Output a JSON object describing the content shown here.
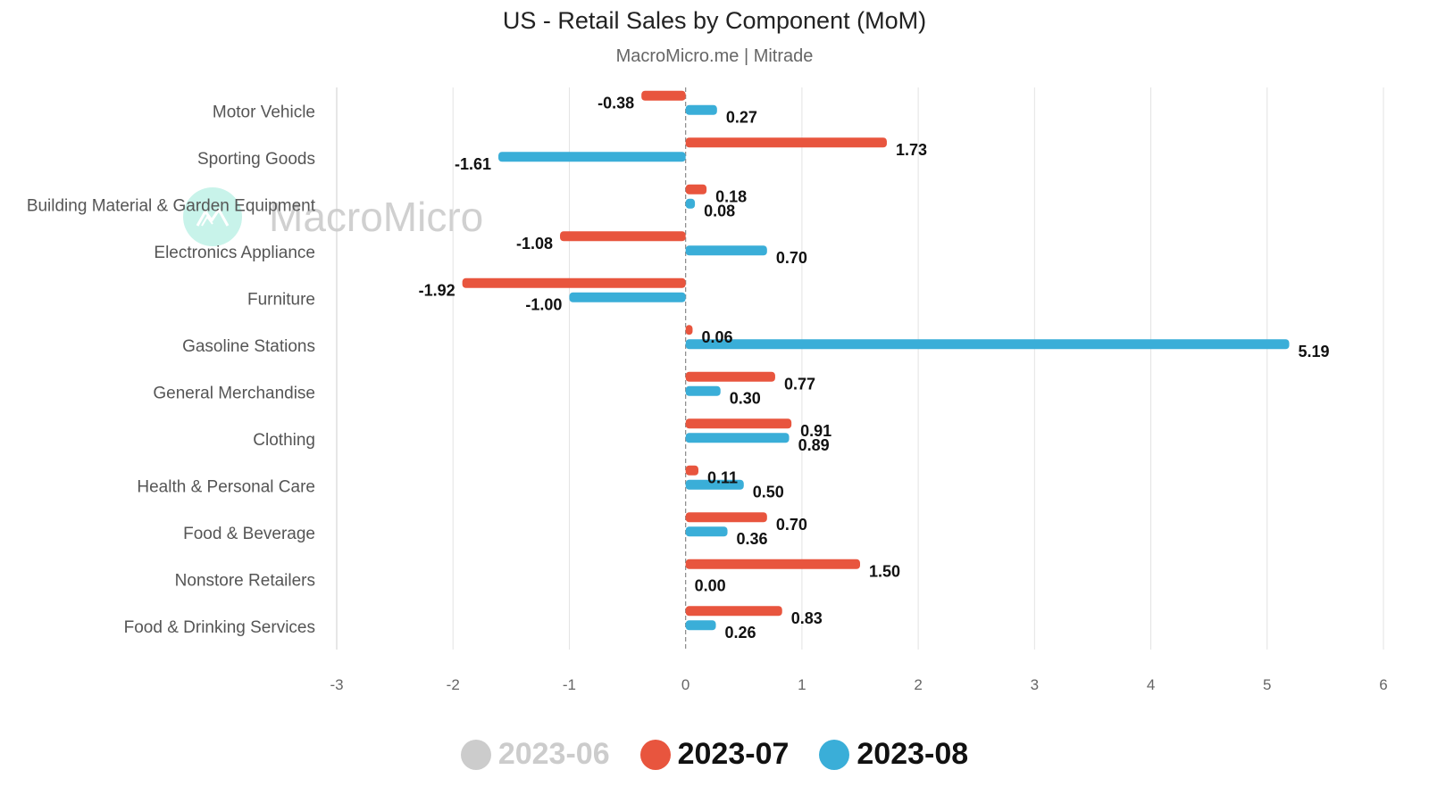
{
  "chart_data": {
    "type": "bar",
    "orientation": "horizontal",
    "title": "US - Retail Sales by Component (MoM)",
    "subtitle": "MacroMicro.me | Mitrade",
    "watermark": "MacroMicro",
    "xlabel": "",
    "ylabel": "",
    "xlim": [
      -3,
      6
    ],
    "xticks": [
      "-3",
      "-2",
      "-1",
      "0",
      "1",
      "2",
      "3",
      "4",
      "5",
      "6"
    ],
    "grid": "vertical",
    "legend_position": "bottom-center",
    "categories": [
      "Motor Vehicle",
      "Sporting Goods",
      "Building Material & Garden Equipment",
      "Electronics Appliance",
      "Furniture",
      "Gasoline Stations",
      "General Merchandise",
      "Clothing",
      "Health & Personal Care",
      "Food & Beverage",
      "Nonstore Retailers",
      "Food & Drinking Services"
    ],
    "series": [
      {
        "name": "2023-06",
        "color": "#cccccc",
        "visible": false,
        "values": []
      },
      {
        "name": "2023-07",
        "color": "#e8553e",
        "visible": true,
        "values": [
          -0.38,
          1.73,
          0.18,
          -1.08,
          -1.92,
          0.06,
          0.77,
          0.91,
          0.11,
          0.7,
          1.5,
          0.83
        ]
      },
      {
        "name": "2023-08",
        "color": "#3aaed8",
        "visible": true,
        "values": [
          0.27,
          -1.61,
          0.08,
          0.7,
          -1.0,
          5.19,
          0.3,
          0.89,
          0.5,
          0.36,
          0.0,
          0.26
        ]
      }
    ]
  },
  "legend": [
    {
      "label": "2023-06",
      "color": "#cccccc",
      "text_color": "#cccccc"
    },
    {
      "label": "2023-07",
      "color": "#e8553e",
      "text_color": "#111111"
    },
    {
      "label": "2023-08",
      "color": "#3aaed8",
      "text_color": "#111111"
    }
  ]
}
